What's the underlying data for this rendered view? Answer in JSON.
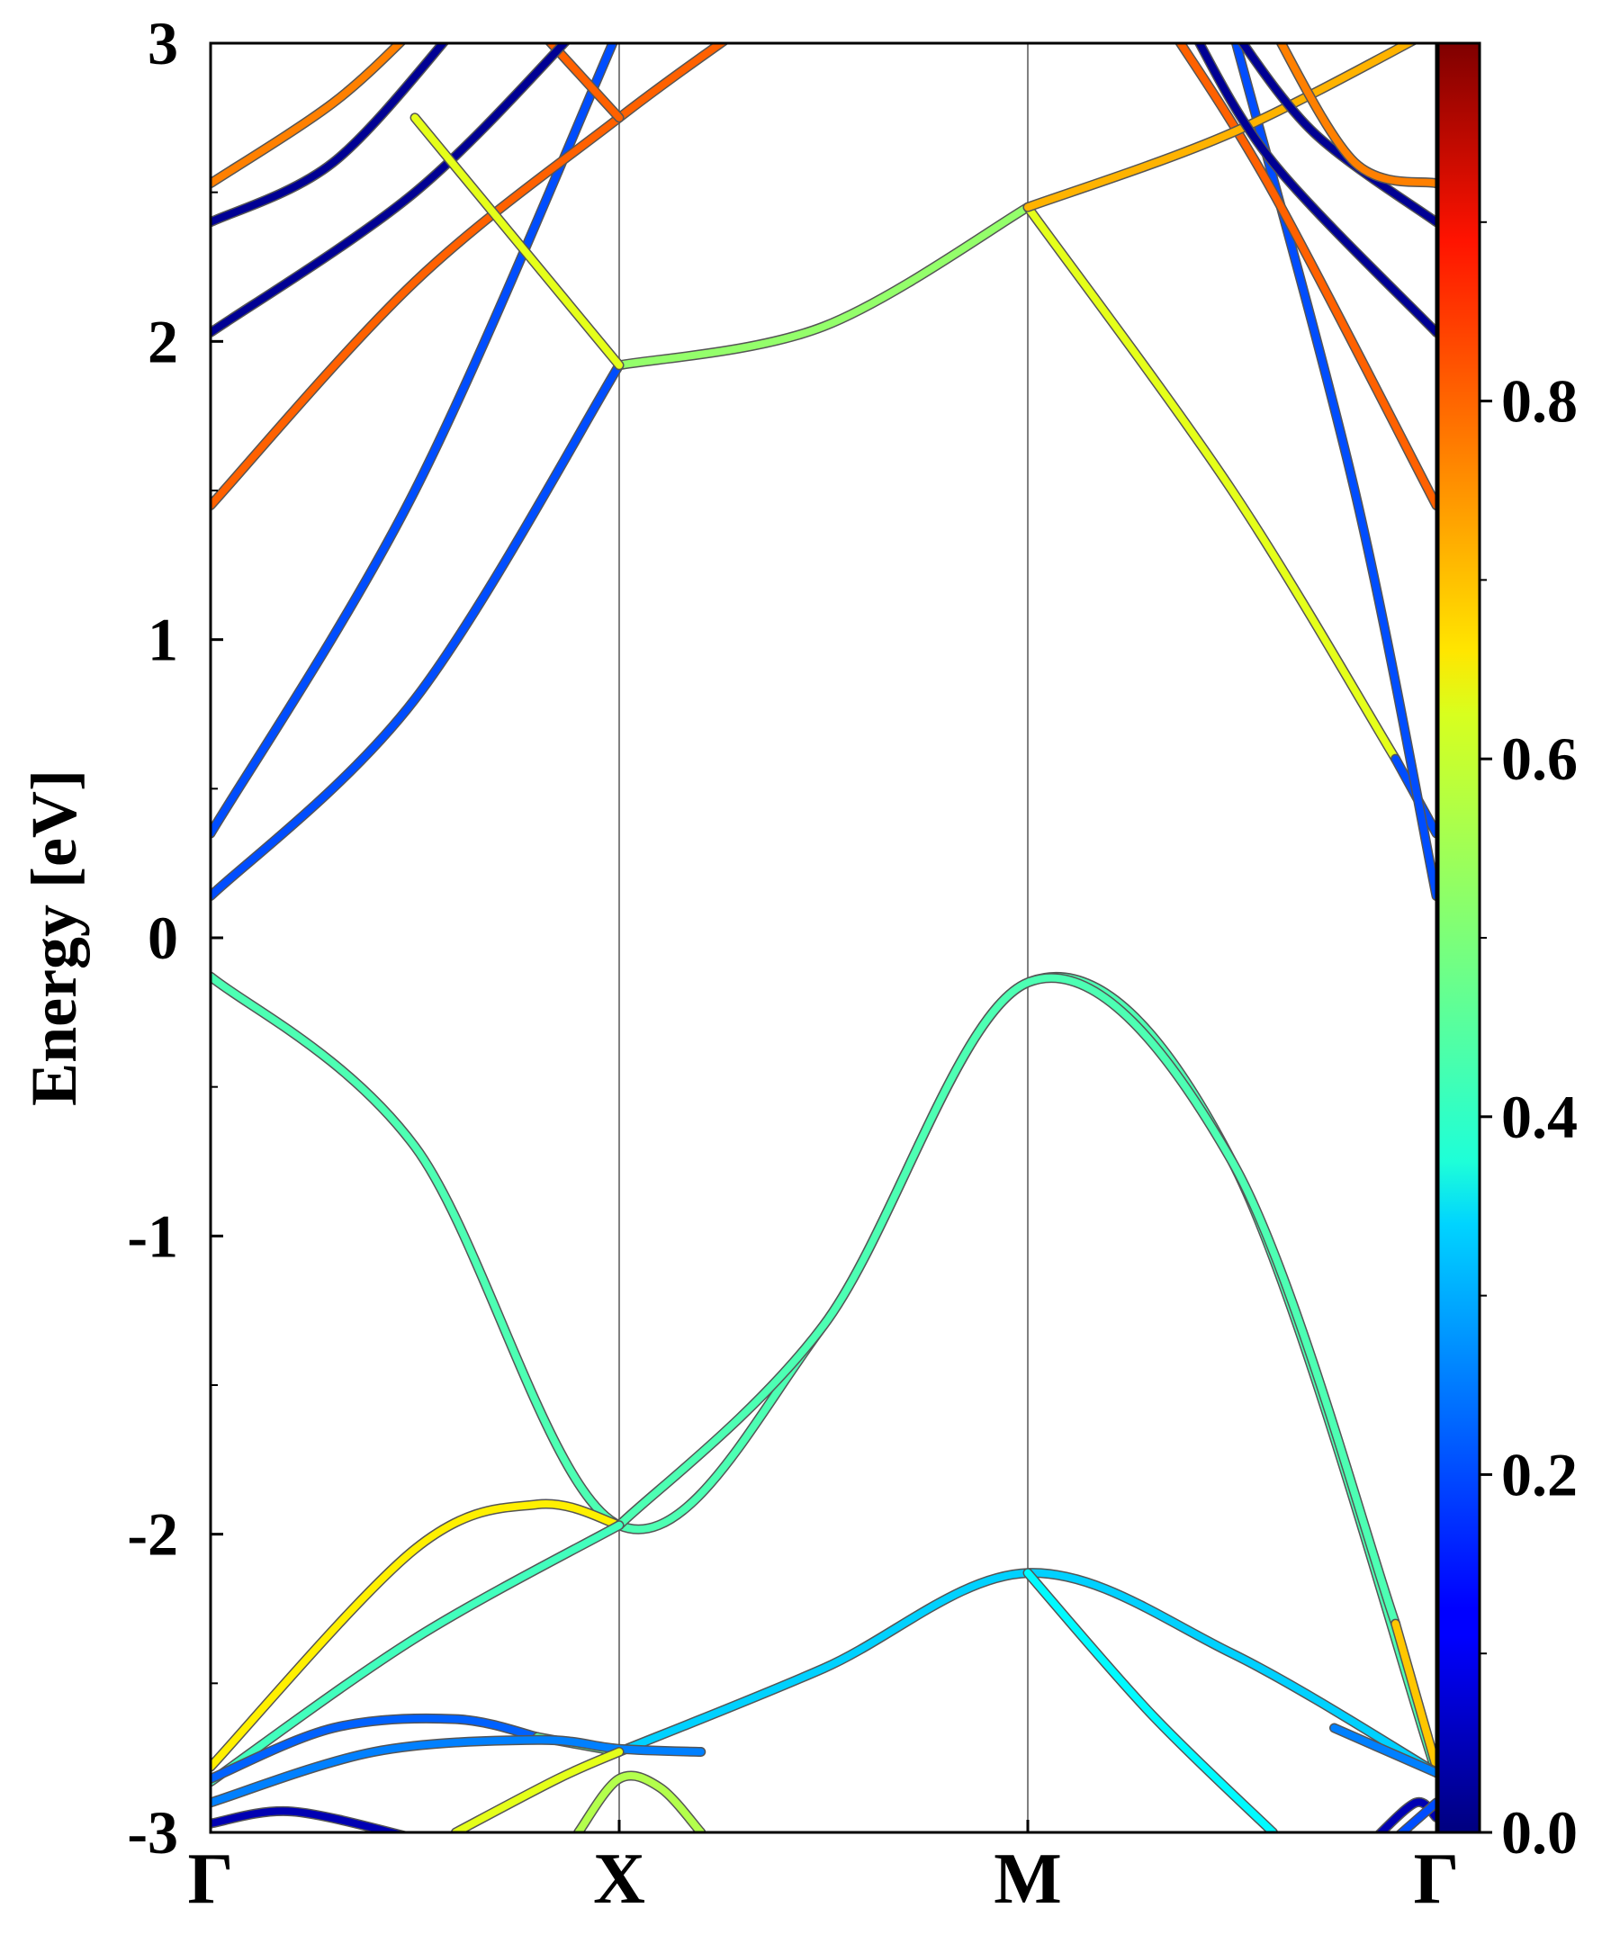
{
  "chart_data": {
    "type": "line",
    "title": "",
    "ylabel": "Energy [eV]",
    "xlabel": "",
    "ylim": [
      -3,
      3
    ],
    "xlim": [
      0,
      3
    ],
    "kpoints": [
      {
        "label": "Γ",
        "x": 0
      },
      {
        "label": "X",
        "x": 1
      },
      {
        "label": "M",
        "x": 2
      },
      {
        "label": "Γ",
        "x": 3
      }
    ],
    "yticks": [
      {
        "value": 3,
        "label": "3"
      },
      {
        "value": 2,
        "label": "2"
      },
      {
        "value": 1,
        "label": "1"
      },
      {
        "value": 0,
        "label": "0"
      },
      {
        "value": -1,
        "label": "-1"
      },
      {
        "value": -2,
        "label": "-2"
      },
      {
        "value": -3,
        "label": "-3"
      }
    ],
    "yminor": [
      2.5,
      1.5,
      0.5,
      -0.5,
      -1.5,
      -2.5
    ],
    "colorbar": {
      "colormap": "jet",
      "range": [
        0,
        1
      ],
      "ticks": [
        {
          "value": 0.0,
          "label": "0.0"
        },
        {
          "value": 0.2,
          "label": "0.2"
        },
        {
          "value": 0.4,
          "label": "0.4"
        },
        {
          "value": 0.6,
          "label": "0.6"
        },
        {
          "value": 0.8,
          "label": "0.8"
        }
      ],
      "minor": [
        0.1,
        0.3,
        0.5,
        0.7,
        0.9
      ]
    },
    "grid": false,
    "bands": [
      {
        "segments": [
          {
            "w": 0.45,
            "pts": [
              [
                0,
                -0.13
              ],
              [
                0.5,
                -0.7
              ],
              [
                1,
                -1.97
              ],
              [
                1.5,
                -1.3
              ],
              [
                2,
                -0.15
              ],
              [
                2.5,
                -0.75
              ],
              [
                3,
                -2.8
              ]
            ]
          }
        ]
      },
      {
        "segments": [
          {
            "w": 0.64,
            "pts": [
              [
                0,
                -2.78
              ],
              [
                0.5,
                -2.05
              ],
              [
                0.8,
                -1.9
              ],
              [
                1,
                -1.97
              ]
            ]
          },
          {
            "w": 0.45,
            "pts": [
              [
                1,
                -1.97
              ],
              [
                1.5,
                -1.3
              ],
              [
                2,
                -0.15
              ],
              [
                2.5,
                -0.75
              ],
              [
                2.9,
                -2.3
              ]
            ]
          },
          {
            "w": 0.68,
            "pts": [
              [
                2.9,
                -2.3
              ],
              [
                3,
                -2.78
              ]
            ]
          }
        ]
      },
      {
        "segments": [
          {
            "w": 0.44,
            "pts": [
              [
                0,
                -2.83
              ],
              [
                0.5,
                -2.35
              ],
              [
                1,
                -1.97
              ]
            ]
          }
        ]
      },
      {
        "segments": [
          {
            "w": 0.33,
            "pts": [
              [
                1,
                -2.73
              ],
              [
                1.5,
                -2.45
              ],
              [
                2,
                -2.13
              ],
              [
                2.5,
                -2.4
              ],
              [
                3,
                -2.8
              ]
            ]
          },
          {
            "w": 0.25,
            "pts": [
              [
                2.75,
                -2.65
              ],
              [
                3,
                -2.8
              ]
            ]
          }
        ]
      },
      {
        "segments": [
          {
            "w": 0.37,
            "pts": [
              [
                2,
                -2.13
              ],
              [
                2.3,
                -2.6
              ],
              [
                2.6,
                -3.0
              ]
            ]
          }
        ]
      },
      {
        "segments": [
          {
            "w": 0.22,
            "pts": [
              [
                0,
                -2.82
              ],
              [
                0.3,
                -2.65
              ],
              [
                0.6,
                -2.62
              ],
              [
                0.8,
                -2.68
              ]
            ]
          },
          {
            "w": 0.47,
            "pts": [
              [
                0.8,
                -2.68
              ],
              [
                1,
                -2.73
              ]
            ]
          }
        ]
      },
      {
        "segments": [
          {
            "w": 0.25,
            "pts": [
              [
                0,
                -2.9
              ],
              [
                0.4,
                -2.73
              ],
              [
                0.8,
                -2.69
              ],
              [
                1,
                -2.72
              ],
              [
                1.2,
                -2.73
              ]
            ]
          }
        ]
      },
      {
        "segments": [
          {
            "w": 0.6,
            "pts": [
              [
                0.6,
                -3.0
              ],
              [
                0.85,
                -2.82
              ],
              [
                1,
                -2.73
              ]
            ]
          }
        ]
      },
      {
        "segments": [
          {
            "w": 0.55,
            "pts": [
              [
                0.9,
                -3.0
              ],
              [
                1,
                -2.82
              ],
              [
                1.1,
                -2.85
              ],
              [
                1.2,
                -3.0
              ]
            ]
          }
        ]
      },
      {
        "segments": [
          {
            "w": 0.05,
            "pts": [
              [
                0,
                -2.97
              ],
              [
                0.2,
                -2.93
              ],
              [
                0.5,
                -3.02
              ]
            ]
          }
        ]
      },
      {
        "segments": [
          {
            "w": 0.05,
            "pts": [
              [
                2.85,
                -3.02
              ],
              [
                2.95,
                -2.9
              ],
              [
                3,
                -2.95
              ]
            ]
          }
        ]
      },
      {
        "segments": [
          {
            "w": 0.2,
            "pts": [
              [
                3,
                -2.9
              ],
              [
                2.9,
                -3.02
              ]
            ]
          }
        ]
      },
      {
        "segments": [
          {
            "w": 0.2,
            "pts": [
              [
                0,
                0.14
              ],
              [
                0.5,
                0.8
              ],
              [
                1,
                1.92
              ]
            ]
          },
          {
            "w": 0.52,
            "pts": [
              [
                1,
                1.92
              ],
              [
                1.5,
                2.05
              ],
              [
                2,
                2.45
              ]
            ]
          },
          {
            "w": 0.6,
            "pts": [
              [
                2,
                2.45
              ],
              [
                2.5,
                1.5
              ],
              [
                2.9,
                0.6
              ]
            ]
          }
        ]
      },
      {
        "segments": [
          {
            "w": 0.2,
            "pts": [
              [
                2.9,
                0.6
              ],
              [
                3,
                0.35
              ]
            ]
          }
        ]
      },
      {
        "segments": [
          {
            "w": 0.2,
            "pts": [
              [
                0,
                0.35
              ],
              [
                0.5,
                1.5
              ],
              [
                1,
                3.05
              ]
            ]
          }
        ]
      },
      {
        "segments": [
          {
            "w": 0.2,
            "pts": [
              [
                2.5,
                3.05
              ],
              [
                2.8,
                1.5
              ],
              [
                3,
                0.14
              ]
            ]
          }
        ]
      },
      {
        "segments": [
          {
            "w": 0.78,
            "pts": [
              [
                0,
                1.45
              ],
              [
                0.5,
                2.2
              ],
              [
                1,
                2.75
              ],
              [
                1.3,
                3.05
              ]
            ]
          }
        ]
      },
      {
        "segments": [
          {
            "w": 0.78,
            "pts": [
              [
                3,
                1.45
              ],
              [
                2.6,
                2.5
              ],
              [
                2.35,
                3.05
              ]
            ]
          }
        ]
      },
      {
        "segments": [
          {
            "w": 0.78,
            "pts": [
              [
                0.8,
                3.05
              ],
              [
                1,
                2.75
              ]
            ]
          }
        ]
      },
      {
        "segments": [
          {
            "w": 0.7,
            "pts": [
              [
                2,
                2.45
              ],
              [
                2.5,
                2.7
              ],
              [
                3,
                3.05
              ]
            ]
          }
        ]
      },
      {
        "segments": [
          {
            "w": 0.02,
            "pts": [
              [
                0,
                2.03
              ],
              [
                0.5,
                2.5
              ],
              [
                0.9,
                3.05
              ]
            ]
          }
        ]
      },
      {
        "segments": [
          {
            "w": 0.02,
            "pts": [
              [
                0,
                2.4
              ],
              [
                0.3,
                2.6
              ],
              [
                0.6,
                3.05
              ]
            ]
          }
        ]
      },
      {
        "segments": [
          {
            "w": 0.02,
            "pts": [
              [
                3,
                2.03
              ],
              [
                2.6,
                2.6
              ],
              [
                2.4,
                3.05
              ]
            ]
          }
        ]
      },
      {
        "segments": [
          {
            "w": 0.02,
            "pts": [
              [
                3,
                2.4
              ],
              [
                2.7,
                2.7
              ],
              [
                2.5,
                3.05
              ]
            ]
          }
        ]
      },
      {
        "segments": [
          {
            "w": 0.75,
            "pts": [
              [
                0,
                2.53
              ],
              [
                0.3,
                2.8
              ],
              [
                0.5,
                3.05
              ]
            ]
          }
        ]
      },
      {
        "segments": [
          {
            "w": 0.75,
            "pts": [
              [
                3,
                2.53
              ],
              [
                2.8,
                2.6
              ],
              [
                2.6,
                3.05
              ]
            ]
          }
        ]
      },
      {
        "segments": [
          {
            "w": 0.6,
            "pts": [
              [
                0.5,
                2.75
              ],
              [
                1,
                1.92
              ]
            ]
          }
        ]
      }
    ]
  }
}
